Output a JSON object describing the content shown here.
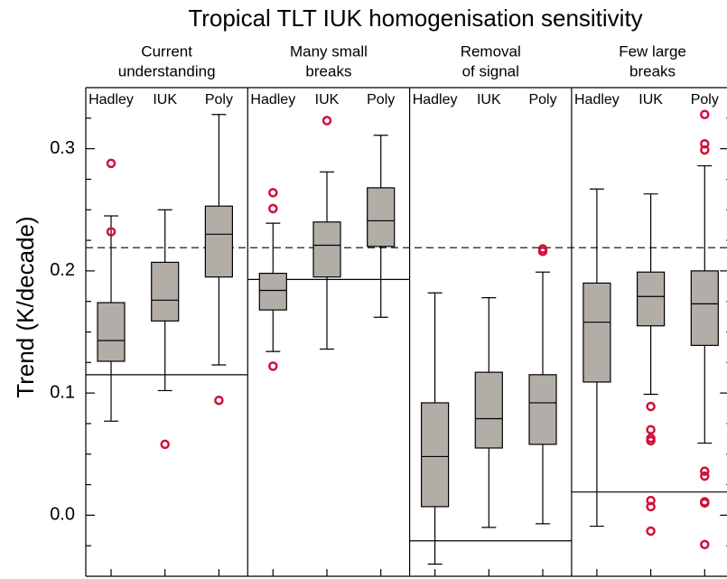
{
  "chart_data": {
    "type": "box",
    "title": "Tropical TLT IUK homogenisation sensitivity",
    "ylabel": "Trend (K/decade)",
    "ylim": [
      -0.05,
      0.35
    ],
    "yticks": [
      {
        "value": 0,
        "label": "0.0"
      },
      0.1,
      0.2,
      0.3
    ],
    "minor_yticks": [
      -0.025,
      0.025,
      0.05,
      0.075,
      0.125,
      0.15,
      0.175,
      0.225,
      0.25,
      0.275,
      0.325
    ],
    "reference_line": 0.219,
    "box_color": "#b3ada8",
    "outlier_color": "#d0103a",
    "panels": [
      {
        "title": [
          "Current",
          "understanding"
        ],
        "observed": 0.115,
        "categories": [
          "Hadley",
          "IUK",
          "Poly"
        ],
        "boxes": [
          {
            "whislo": 0.077,
            "q1": 0.126,
            "med": 0.143,
            "q3": 0.174,
            "whishi": 0.245,
            "fliers": [
              0.288,
              0.232
            ]
          },
          {
            "whislo": 0.102,
            "q1": 0.159,
            "med": 0.176,
            "q3": 0.207,
            "whishi": 0.25,
            "fliers": [
              0.058
            ]
          },
          {
            "whislo": 0.123,
            "q1": 0.195,
            "med": 0.23,
            "q3": 0.253,
            "whishi": 0.328,
            "fliers": [
              0.094
            ]
          }
        ]
      },
      {
        "title": [
          "Many small",
          "breaks"
        ],
        "observed": 0.193,
        "categories": [
          "Hadley",
          "IUK",
          "Poly"
        ],
        "boxes": [
          {
            "whislo": 0.134,
            "q1": 0.168,
            "med": 0.184,
            "q3": 0.198,
            "whishi": 0.239,
            "fliers": [
              0.264,
              0.251,
              0.122
            ]
          },
          {
            "whislo": 0.136,
            "q1": 0.195,
            "med": 0.221,
            "q3": 0.24,
            "whishi": 0.281,
            "fliers": [
              0.323
            ]
          },
          {
            "whislo": 0.162,
            "q1": 0.22,
            "med": 0.241,
            "q3": 0.268,
            "whishi": 0.311,
            "fliers": []
          }
        ]
      },
      {
        "title": [
          "Removal",
          "of signal"
        ],
        "observed": -0.021,
        "categories": [
          "Hadley",
          "IUK",
          "Poly"
        ],
        "boxes": [
          {
            "whislo": -0.04,
            "q1": 0.007,
            "med": 0.048,
            "q3": 0.092,
            "whishi": 0.182,
            "fliers": []
          },
          {
            "whislo": -0.01,
            "q1": 0.055,
            "med": 0.079,
            "q3": 0.117,
            "whishi": 0.178,
            "fliers": []
          },
          {
            "whislo": -0.007,
            "q1": 0.058,
            "med": 0.092,
            "q3": 0.115,
            "whishi": 0.199,
            "fliers": [
              0.218,
              0.216
            ]
          }
        ]
      },
      {
        "title": [
          "Few large",
          "breaks"
        ],
        "observed": 0.019,
        "categories": [
          "Hadley",
          "IUK",
          "Poly"
        ],
        "boxes": [
          {
            "whislo": -0.009,
            "q1": 0.109,
            "med": 0.158,
            "q3": 0.19,
            "whishi": 0.267,
            "fliers": []
          },
          {
            "whislo": 0.099,
            "q1": 0.155,
            "med": 0.179,
            "q3": 0.199,
            "whishi": 0.263,
            "fliers": [
              0.089,
              0.07,
              0.063,
              0.061,
              0.012,
              0.007,
              -0.013
            ]
          },
          {
            "whislo": 0.059,
            "q1": 0.139,
            "med": 0.173,
            "q3": 0.2,
            "whishi": 0.286,
            "fliers": [
              0.328,
              0.304,
              0.299,
              0.036,
              0.032,
              0.011,
              0.01,
              -0.024
            ]
          }
        ]
      }
    ]
  }
}
